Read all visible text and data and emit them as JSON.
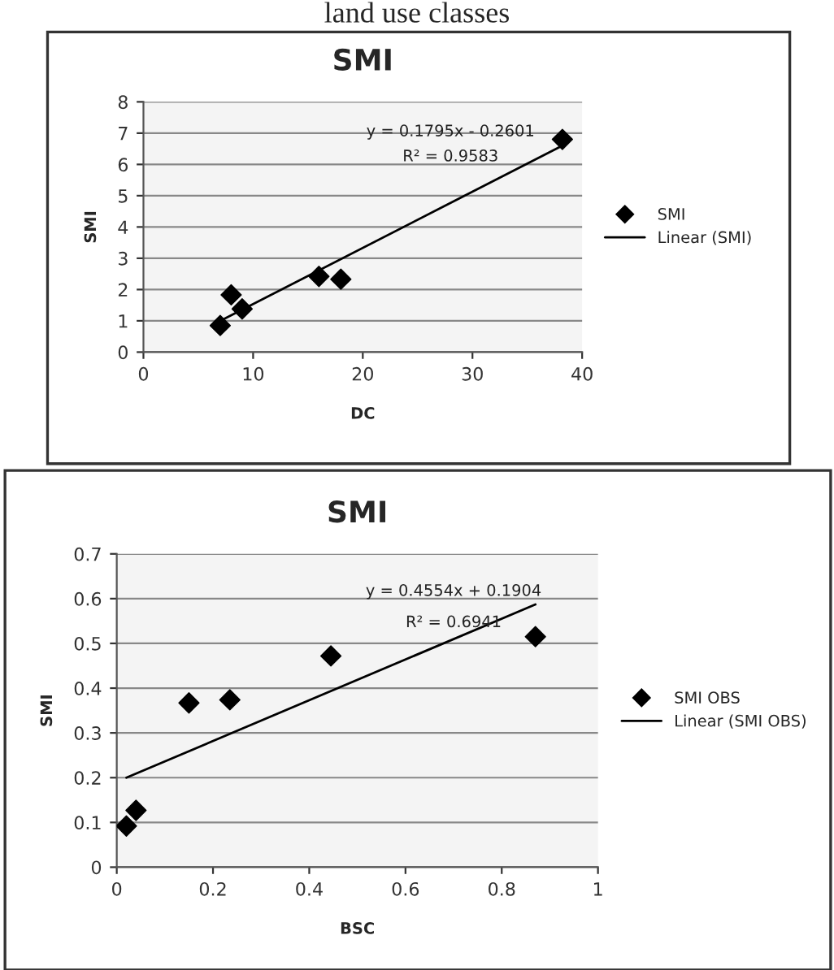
{
  "chart_data": [
    {
      "type": "scatter",
      "title": "SMI",
      "xlabel": "DC",
      "ylabel": "SMI",
      "xlim": [
        0,
        40
      ],
      "xticks": [
        0,
        10,
        20,
        30,
        40
      ],
      "ylim": [
        0,
        8
      ],
      "yticks": [
        0,
        1,
        2,
        3,
        4,
        5,
        6,
        7,
        8
      ],
      "grid": "y",
      "legend": "right",
      "annotations": [
        "land use classes",
        "y = 0.1795x - 0.2601",
        "R² = 0.9583"
      ],
      "series": [
        {
          "name": "SMI",
          "type": "scatter",
          "marker": "diamond",
          "color": "#000000",
          "x": [
            7,
            8,
            9,
            16,
            18,
            38.2
          ],
          "values": [
            0.85,
            1.83,
            1.38,
            2.42,
            2.33,
            6.8
          ]
        },
        {
          "name": "Linear (SMI)",
          "type": "line",
          "color": "#000000",
          "x": [
            7,
            38.2
          ],
          "values": [
            1.0,
            6.6
          ]
        }
      ]
    },
    {
      "type": "scatter",
      "title": "SMI",
      "xlabel": "BSC",
      "ylabel": "SMI",
      "xlim": [
        0,
        1
      ],
      "xticks": [
        0,
        0.2,
        0.4,
        0.6,
        0.8,
        1
      ],
      "ylim": [
        0,
        0.7
      ],
      "yticks": [
        0,
        0.1,
        0.2,
        0.3,
        0.4,
        0.5,
        0.6,
        0.7
      ],
      "grid": "y",
      "legend": "right",
      "annotations": [
        "y = 0.4554x + 0.1904",
        "R² = 0.6941"
      ],
      "series": [
        {
          "name": "SMI OBS",
          "type": "scatter",
          "marker": "diamond",
          "color": "#000000",
          "x": [
            0.02,
            0.04,
            0.15,
            0.235,
            0.445,
            0.87
          ],
          "values": [
            0.092,
            0.127,
            0.367,
            0.374,
            0.472,
            0.515
          ]
        },
        {
          "name": "Linear (SMI OBS)",
          "type": "line",
          "color": "#000000",
          "x": [
            0.02,
            0.87
          ],
          "values": [
            0.2,
            0.587
          ]
        }
      ]
    }
  ]
}
